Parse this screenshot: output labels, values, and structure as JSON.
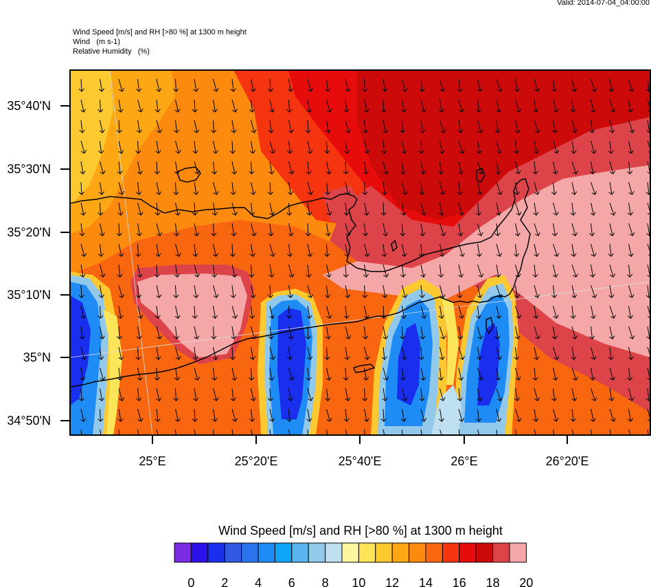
{
  "valid_time": "Valid: 2014-07-04_04:00:00",
  "header": {
    "line1": "Wind Speed [m/s] and RH [>80 %] at 1300 m height",
    "line2": "Wind   (m s-1)",
    "line3": "Relative Humidity   (%)"
  },
  "map": {
    "lat_labels": [
      "35°40'N",
      "35°30'N",
      "35°20'N",
      "35°10'N",
      "35°N",
      "34°50'N"
    ],
    "lon_labels": [
      "25°E",
      "25°20'E",
      "25°40'E",
      "26°E",
      "26°20'E"
    ],
    "wind_direction": "north-to-south"
  },
  "colorbar": {
    "title": "Wind Speed [m/s] and RH [>80 %] at 1300 m height",
    "tick_labels": [
      "0",
      "2",
      "4",
      "6",
      "8",
      "10",
      "12",
      "14",
      "16",
      "18",
      "20"
    ],
    "colors": [
      "#7a2be3",
      "#2c10e8",
      "#1a2fee",
      "#3058e0",
      "#2a73ec",
      "#1e8cf4",
      "#10a6f8",
      "#5cb4ee",
      "#92c8ea",
      "#bfe0f0",
      "#fdf6a0",
      "#fde55a",
      "#fdc930",
      "#fca713",
      "#fb8a0e",
      "#f96610",
      "#f53410",
      "#e70c0c",
      "#cc0a0a",
      "#dc4449",
      "#f5a7a7"
    ]
  }
}
